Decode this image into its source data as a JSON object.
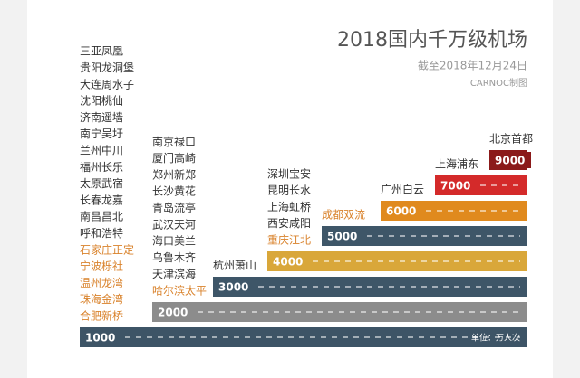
{
  "chart_data": {
    "type": "step-bar",
    "title": "2018国内千万级机场",
    "subtitle": "截至2018年12月24日",
    "source": "CARNOC制图",
    "unit_label": "单位：万人次",
    "tiers": [
      {
        "value": 1000,
        "color": "#3d5466",
        "airports": [
          {
            "name": "三亚凤凰",
            "color": "#333333"
          },
          {
            "name": "贵阳龙洞堡",
            "color": "#333333"
          },
          {
            "name": "大连周水子",
            "color": "#333333"
          },
          {
            "name": "沈阳桃仙",
            "color": "#333333"
          },
          {
            "name": "济南遥墙",
            "color": "#333333"
          },
          {
            "name": "南宁吴圩",
            "color": "#333333"
          },
          {
            "name": "兰州中川",
            "color": "#333333"
          },
          {
            "name": "福州长乐",
            "color": "#333333"
          },
          {
            "name": "太原武宿",
            "color": "#333333"
          },
          {
            "name": "长春龙嘉",
            "color": "#333333"
          },
          {
            "name": "南昌昌北",
            "color": "#333333"
          },
          {
            "name": "呼和浩特",
            "color": "#333333"
          },
          {
            "name": "石家庄正定",
            "color": "#d9822b"
          },
          {
            "name": "宁波栎社",
            "color": "#d9822b"
          },
          {
            "name": "温州龙湾",
            "color": "#d9822b"
          },
          {
            "name": "珠海金湾",
            "color": "#d9822b"
          },
          {
            "name": "合肥新桥",
            "color": "#d9822b"
          }
        ]
      },
      {
        "value": 2000,
        "color": "#8c8c8c",
        "airports": [
          {
            "name": "南京禄口",
            "color": "#333333"
          },
          {
            "name": "厦门高崎",
            "color": "#333333"
          },
          {
            "name": "郑州新郑",
            "color": "#333333"
          },
          {
            "name": "长沙黄花",
            "color": "#333333"
          },
          {
            "name": "青岛流亭",
            "color": "#333333"
          },
          {
            "name": "武汉天河",
            "color": "#333333"
          },
          {
            "name": "海口美兰",
            "color": "#333333"
          },
          {
            "name": "乌鲁木齐",
            "color": "#333333"
          },
          {
            "name": "天津滨海",
            "color": "#333333"
          },
          {
            "name": "哈尔滨太平",
            "color": "#d9822b"
          }
        ]
      },
      {
        "value": 3000,
        "color": "#3e5668",
        "airports": [
          {
            "name": "杭州萧山",
            "color": "#333333"
          }
        ]
      },
      {
        "value": 4000,
        "color": "#d9a73a",
        "airports": [
          {
            "name": "深圳宝安",
            "color": "#333333"
          },
          {
            "name": "昆明长水",
            "color": "#333333"
          },
          {
            "name": "上海虹桥",
            "color": "#333333"
          },
          {
            "name": "西安咸阳",
            "color": "#333333"
          },
          {
            "name": "重庆江北",
            "color": "#d9822b"
          }
        ]
      },
      {
        "value": 5000,
        "color": "#3e5668",
        "airports": [
          {
            "name": "成都双流",
            "color": "#d9822b"
          }
        ]
      },
      {
        "value": 6000,
        "color": "#e08a1e",
        "airports": [
          {
            "name": "广州白云",
            "color": "#333333"
          }
        ]
      },
      {
        "value": 7000,
        "color": "#d42a2a",
        "airports": [
          {
            "name": "上海浦东",
            "color": "#333333"
          }
        ]
      },
      {
        "value": 9000,
        "color": "#8b1a1a",
        "airports": [
          {
            "name": "北京首都",
            "color": "#333333"
          }
        ]
      }
    ]
  }
}
